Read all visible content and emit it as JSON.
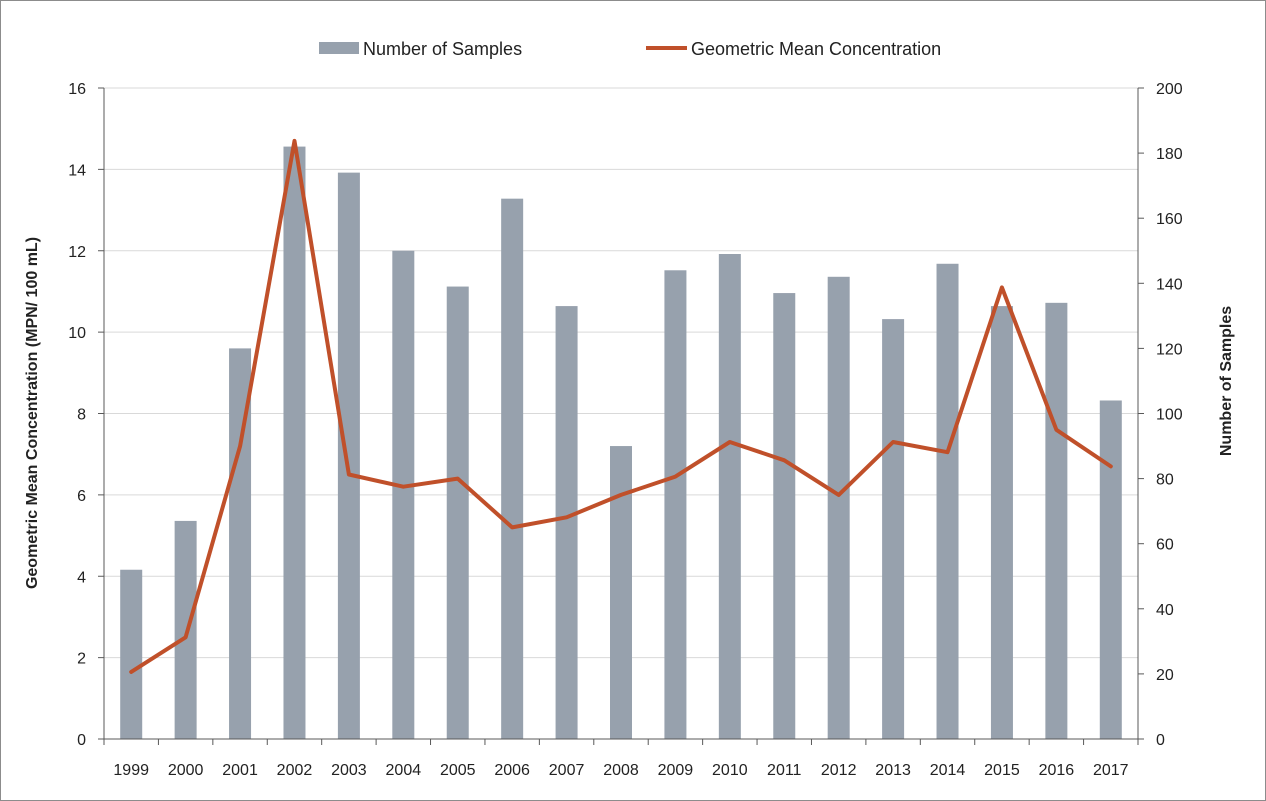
{
  "chart_data": {
    "type": "bar+line",
    "title": "",
    "categories": [
      "1999",
      "2000",
      "2001",
      "2002",
      "2003",
      "2004",
      "2005",
      "2006",
      "2007",
      "2008",
      "2009",
      "2010",
      "2011",
      "2012",
      "2013",
      "2014",
      "2015",
      "2016",
      "2017"
    ],
    "series": [
      {
        "name": "Number of Samples",
        "type": "bar",
        "axis": "right",
        "color": "#97a1ad",
        "values": [
          52,
          67,
          120,
          182,
          174,
          150,
          139,
          166,
          133,
          90,
          144,
          149,
          137,
          142,
          129,
          146,
          133,
          134,
          104
        ]
      },
      {
        "name": "Geometric Mean Concentration",
        "type": "line",
        "axis": "left",
        "color": "#c0502a",
        "values": [
          1.65,
          2.5,
          7.2,
          14.7,
          6.5,
          6.2,
          6.4,
          5.2,
          5.45,
          6.0,
          6.45,
          7.3,
          6.85,
          6.0,
          7.3,
          7.05,
          11.1,
          7.6,
          6.7
        ]
      }
    ],
    "y_left": {
      "label": "Geometric Mean Concentration (MPN/ 100 mL)",
      "min": 0,
      "max": 16,
      "ticks": [
        "0",
        "2",
        "4",
        "6",
        "8",
        "10",
        "12",
        "14",
        "16"
      ]
    },
    "y_right": {
      "label": "Number of Samples",
      "min": 0,
      "max": 200,
      "ticks": [
        "0",
        "20",
        "40",
        "60",
        "80",
        "100",
        "120",
        "140",
        "160",
        "180",
        "200"
      ]
    },
    "grid": true,
    "legend_position": "top"
  }
}
